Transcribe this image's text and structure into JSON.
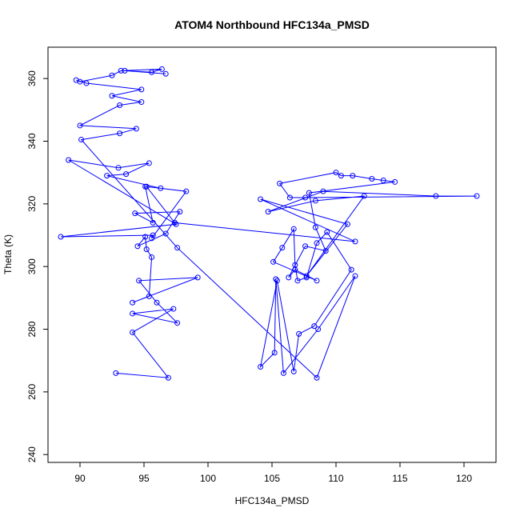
{
  "chart_data": {
    "type": "line",
    "title": "ATOM4 Northbound HFC134a_PMSD",
    "xlabel": "HFC134a_PMSD",
    "ylabel": "Theta (K)",
    "xlim": [
      87.5,
      122.5
    ],
    "ylim": [
      237.5,
      370
    ],
    "x_ticks": [
      90,
      95,
      100,
      105,
      110,
      115,
      120
    ],
    "y_ticks": [
      240,
      260,
      280,
      300,
      320,
      340,
      360
    ],
    "marker": "open-circle",
    "series_color": "#0000ff",
    "series": [
      {
        "x": [
          92.8,
          96.9,
          94.1,
          97.3,
          94.1,
          97.6,
          96.0,
          94.6,
          99.2,
          94.1,
          95.4,
          95.6,
          95.2,
          95.1,
          94.5,
          96.7,
          97.8,
          94.3,
          95.7,
          95.1,
          96.3,
          92.1,
          93.6,
          95.4,
          93.0,
          89.1,
          97.5,
          88.5,
          95.7,
          95.6,
          98.3,
          95.2,
          97.4,
          111.5,
          104.1,
          110.9,
          107.7,
          112.2,
          108.4,
          104.7,
          109.0,
          117.8,
          121.0,
          107.6,
          106.4,
          105.6,
          110.0,
          110.4,
          111.3,
          112.8,
          113.7,
          114.6,
          107.9,
          108.4,
          109.2,
          107.6,
          106.3,
          106.8,
          108.5,
          105.1,
          105.8,
          106.7,
          106.8,
          107.0,
          107.7,
          108.5,
          109.3,
          111.2,
          108.3,
          107.1,
          106.7,
          105.4,
          104.1,
          105.2,
          105.3,
          105.9,
          108.6,
          111.5,
          108.5,
          97.6,
          90.1,
          93.1,
          94.4,
          90.0,
          93.1,
          94.8,
          92.5,
          94.8,
          90.5,
          89.7,
          90.0,
          92.5,
          93.2,
          96.4,
          95.6,
          93.5,
          96.7
        ],
        "y": [
          266,
          264.5,
          279,
          286.5,
          285,
          282,
          288.5,
          295.5,
          296.5,
          288.5,
          290.5,
          303,
          305.5,
          309.5,
          306.5,
          310.5,
          317.5,
          317,
          314,
          325.5,
          325,
          329,
          329.5,
          333,
          331.5,
          334,
          313.5,
          309.5,
          310,
          309,
          324,
          325.5,
          314,
          308,
          321.5,
          313.5,
          297,
          322.5,
          321,
          317.5,
          324,
          322.5,
          322.5,
          322,
          322,
          326.5,
          330,
          329,
          329,
          328,
          327.5,
          327,
          323.5,
          312.5,
          305,
          306.5,
          296.5,
          299,
          295.5,
          301.5,
          306,
          312,
          300.5,
          295.5,
          296.5,
          307.5,
          311,
          299,
          281,
          278.5,
          266.5,
          295.5,
          268,
          272.5,
          296,
          266,
          280,
          297,
          264.5,
          306,
          340.5,
          342.5,
          344,
          345,
          351.5,
          352.5,
          354.5,
          356.5,
          358.5,
          359.5,
          359,
          361,
          362.5,
          363,
          362,
          362.5,
          361.5
        ]
      }
    ]
  }
}
